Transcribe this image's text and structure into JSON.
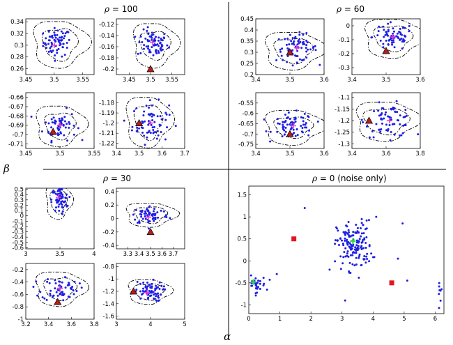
{
  "figure": {
    "x_label": "α",
    "y_label": "β"
  },
  "quadrants": [
    {
      "rho_symbol": "ρ",
      "title": "= 100"
    },
    {
      "rho_symbol": "ρ",
      "title": "= 60"
    },
    {
      "rho_symbol": "ρ",
      "title": "= 30"
    },
    {
      "rho_symbol": "ρ",
      "title": "= 0 (noise only)"
    }
  ],
  "colors": {
    "points": "#1f1fe6",
    "estimate": "#e23cd6",
    "truth_marker": "#b41e1e",
    "noise_square": "#e0191f",
    "noise_center": "#2ee03a"
  },
  "chart_data": [
    {
      "type": "scatter",
      "panel": "rho100-a",
      "xlim": [
        3.45,
        3.57
      ],
      "ylim": [
        0.25,
        0.345
      ],
      "xticks": [
        3.45,
        3.5,
        3.55
      ],
      "yticks": [
        0.26,
        0.28,
        0.3,
        0.32,
        0.34
      ],
      "cloud": {
        "center": [
          3.505,
          0.305
        ],
        "spread": [
          0.012,
          0.012
        ],
        "n": 70
      },
      "estimate": [
        3.5,
        0.3
      ],
      "truth": null,
      "contours": [
        {
          "center": [
            3.51,
            0.303
          ],
          "radius": [
            0.03,
            0.027
          ]
        },
        {
          "center": [
            3.51,
            0.303
          ],
          "radius": [
            0.048,
            0.04
          ]
        }
      ]
    },
    {
      "type": "scatter",
      "panel": "rho100-b",
      "xlim": [
        3.42,
        3.58
      ],
      "ylim": [
        -0.21,
        -0.11
      ],
      "xticks": [
        3.45,
        3.5,
        3.55
      ],
      "yticks": [
        -0.12,
        -0.14,
        -0.16,
        -0.18,
        -0.2
      ],
      "cloud": {
        "center": [
          3.505,
          -0.155
        ],
        "spread": [
          0.018,
          0.012
        ],
        "n": 70
      },
      "estimate": [
        3.505,
        -0.152
      ],
      "truth": [
        3.5,
        -0.2
      ],
      "contours": [
        {
          "center": [
            3.51,
            -0.156
          ],
          "radius": [
            0.035,
            0.025
          ]
        },
        {
          "center": [
            3.51,
            -0.156
          ],
          "radius": [
            0.052,
            0.04
          ]
        }
      ]
    },
    {
      "type": "scatter",
      "panel": "rho100-c",
      "xlim": [
        3.45,
        3.55
      ],
      "ylim": [
        -0.715,
        -0.655
      ],
      "xticks": [
        3.45,
        3.5,
        3.55
      ],
      "yticks": [
        -0.66,
        -0.67,
        -0.68,
        -0.69,
        -0.7,
        -0.71
      ],
      "cloud": {
        "center": [
          3.5,
          -0.69
        ],
        "spread": [
          0.012,
          0.008
        ],
        "n": 60
      },
      "estimate": [
        3.5,
        -0.69
      ],
      "truth": [
        3.49,
        -0.697
      ],
      "contours": [
        {
          "center": [
            3.5,
            -0.69
          ],
          "radius": [
            0.022,
            0.014
          ]
        },
        {
          "center": [
            3.5,
            -0.69
          ],
          "radius": [
            0.036,
            0.022
          ]
        }
      ]
    },
    {
      "type": "scatter",
      "panel": "rho100-d",
      "xlim": [
        3.4,
        3.7
      ],
      "ylim": [
        -1.225,
        -1.17
      ],
      "xticks": [
        3.4,
        3.5,
        3.6,
        3.7
      ],
      "yticks": [
        -1.18,
        -1.19,
        -1.2,
        -1.21,
        -1.22
      ],
      "cloud": {
        "center": [
          3.55,
          -1.2
        ],
        "spread": [
          0.04,
          0.01
        ],
        "n": 70
      },
      "estimate": [
        3.55,
        -1.2
      ],
      "truth": [
        3.5,
        -1.2
      ],
      "contours": [
        {
          "center": [
            3.54,
            -1.198
          ],
          "radius": [
            0.06,
            0.017
          ]
        },
        {
          "center": [
            3.54,
            -1.198
          ],
          "radius": [
            0.1,
            0.025
          ]
        }
      ]
    },
    {
      "type": "scatter",
      "panel": "rho60-a",
      "xlim": [
        3.4,
        3.6
      ],
      "ylim": [
        0.2,
        0.45
      ],
      "xticks": [
        3.4,
        3.5,
        3.6
      ],
      "yticks": [
        0.2,
        0.25,
        0.3,
        0.35,
        0.4,
        0.45
      ],
      "cloud": {
        "center": [
          3.52,
          0.32
        ],
        "spread": [
          0.03,
          0.03
        ],
        "n": 70
      },
      "estimate": [
        3.52,
        0.32
      ],
      "truth": [
        3.5,
        0.3
      ],
      "contours": [
        {
          "center": [
            3.51,
            0.31
          ],
          "radius": [
            0.055,
            0.055
          ]
        },
        {
          "center": [
            3.51,
            0.31
          ],
          "radius": [
            0.085,
            0.085
          ]
        }
      ]
    },
    {
      "type": "scatter",
      "panel": "rho60-b",
      "xlim": [
        3.4,
        3.6
      ],
      "ylim": [
        -0.35,
        0.05
      ],
      "xticks": [
        3.4,
        3.5,
        3.6
      ],
      "yticks": [
        0,
        -0.1,
        -0.2,
        -0.3
      ],
      "cloud": {
        "center": [
          3.52,
          -0.08
        ],
        "spread": [
          0.03,
          0.05
        ],
        "n": 70
      },
      "estimate": [
        3.52,
        -0.08
      ],
      "truth": [
        3.5,
        -0.18
      ],
      "contours": [
        {
          "center": [
            3.52,
            -0.085
          ],
          "radius": [
            0.055,
            0.09
          ]
        },
        {
          "center": [
            3.52,
            -0.085
          ],
          "radius": [
            0.085,
            0.14
          ]
        }
      ]
    },
    {
      "type": "scatter",
      "panel": "rho60-c",
      "xlim": [
        3.4,
        3.6
      ],
      "ylim": [
        -0.77,
        -0.5
      ],
      "xticks": [
        3.4,
        3.5,
        3.6
      ],
      "yticks": [
        -0.55,
        -0.6,
        -0.65,
        -0.7,
        -0.75
      ],
      "cloud": {
        "center": [
          3.51,
          -0.66
        ],
        "spread": [
          0.03,
          0.03
        ],
        "n": 70
      },
      "estimate": [
        3.51,
        -0.66
      ],
      "truth": [
        3.5,
        -0.7
      ],
      "contours": [
        {
          "center": [
            3.51,
            -0.665
          ],
          "radius": [
            0.055,
            0.05
          ]
        },
        {
          "center": [
            3.51,
            -0.665
          ],
          "radius": [
            0.085,
            0.085
          ]
        }
      ]
    },
    {
      "type": "scatter",
      "panel": "rho60-d",
      "xlim": [
        3.4,
        3.8
      ],
      "ylim": [
        -1.32,
        -1.08
      ],
      "xticks": [
        3.4,
        3.6,
        3.8
      ],
      "yticks": [
        -1.1,
        -1.15,
        -1.2,
        -1.25,
        -1.3
      ],
      "cloud": {
        "center": [
          3.62,
          -1.2
        ],
        "spread": [
          0.07,
          0.035
        ],
        "n": 70
      },
      "estimate": [
        3.62,
        -1.2
      ],
      "truth": [
        3.5,
        -1.2
      ],
      "contours": [
        {
          "center": [
            3.6,
            -1.2
          ],
          "radius": [
            0.13,
            0.055
          ]
        },
        {
          "center": [
            3.6,
            -1.2
          ],
          "radius": [
            0.18,
            0.085
          ]
        }
      ]
    },
    {
      "type": "scatter",
      "panel": "rho30-a",
      "xlim": [
        3,
        4
      ],
      "ylim": [
        -0.62,
        0.52
      ],
      "xticks": [
        3,
        3.5,
        4
      ],
      "yticks": [
        0.5,
        0.4,
        0.3,
        0.2,
        0.1,
        0,
        -0.1,
        -0.2,
        -0.3,
        -0.4,
        -0.5,
        -0.6
      ],
      "cloud": {
        "center": [
          3.5,
          0.3
        ],
        "spread": [
          0.06,
          0.12
        ],
        "n": 60
      },
      "estimate": [
        3.48,
        0.35
      ],
      "truth": null,
      "contours": [
        {
          "center": [
            3.48,
            0.28
          ],
          "radius": [
            0.12,
            0.22
          ]
        },
        {
          "center": [
            3.48,
            0.28
          ],
          "radius": [
            0.19,
            0.33
          ]
        }
      ]
    },
    {
      "type": "scatter",
      "panel": "rho30-b",
      "xlim": [
        3.2,
        3.8
      ],
      "ylim": [
        -0.45,
        0.45
      ],
      "xticks": [
        3.3,
        3.4,
        3.5,
        3.6,
        3.7
      ],
      "yticks": [
        0.4,
        0.2,
        0,
        -0.2,
        -0.4
      ],
      "cloud": {
        "center": [
          3.5,
          0.05
        ],
        "spread": [
          0.08,
          0.07
        ],
        "n": 70
      },
      "estimate": [
        3.48,
        0.02
      ],
      "truth": [
        3.5,
        -0.2
      ],
      "contours": [
        {
          "center": [
            3.5,
            0.06
          ],
          "radius": [
            0.14,
            0.12
          ]
        },
        {
          "center": [
            3.5,
            0.06
          ],
          "radius": [
            0.22,
            0.18
          ]
        }
      ]
    },
    {
      "type": "scatter",
      "panel": "rho30-c",
      "xlim": [
        3.2,
        3.8
      ],
      "ylim": [
        -1.0,
        -0.1
      ],
      "xticks": [
        3.2,
        3.4,
        3.6,
        3.8
      ],
      "yticks": [
        -0.2,
        -0.4,
        -0.6,
        -0.8,
        -1
      ],
      "cloud": {
        "center": [
          3.5,
          -0.5
        ],
        "spread": [
          0.08,
          0.1
        ],
        "n": 60
      },
      "estimate": [
        3.5,
        -0.5
      ],
      "truth": [
        3.48,
        -0.72
      ],
      "contours": [
        {
          "center": [
            3.5,
            -0.5
          ],
          "radius": [
            0.14,
            0.18
          ]
        },
        {
          "center": [
            3.5,
            -0.5
          ],
          "radius": [
            0.22,
            0.28
          ]
        }
      ]
    },
    {
      "type": "scatter",
      "panel": "rho30-d",
      "xlim": [
        3,
        5
      ],
      "ylim": [
        -1.65,
        -0.75
      ],
      "xticks": [
        3,
        4,
        5
      ],
      "yticks": [
        -0.8,
        -1,
        -1.2,
        -1.4,
        -1.6
      ],
      "cloud": {
        "center": [
          3.95,
          -1.2
        ],
        "spread": [
          0.2,
          0.08
        ],
        "n": 70
      },
      "estimate": [
        3.9,
        -1.22
      ],
      "truth": [
        3.5,
        -1.2
      ],
      "contours": [
        {
          "center": [
            3.95,
            -1.2
          ],
          "radius": [
            0.42,
            0.13
          ]
        },
        {
          "center": [
            3.95,
            -1.2
          ],
          "radius": [
            0.62,
            0.2
          ]
        }
      ]
    },
    {
      "type": "scatter",
      "panel": "rho0",
      "xlim": [
        0,
        6.28
      ],
      "ylim": [
        -1.2,
        1.7
      ],
      "xticks": [
        0,
        1,
        2,
        3,
        4,
        5,
        6
      ],
      "yticks": [
        1.5,
        1,
        0.5,
        0,
        -0.5,
        -1
      ],
      "clusters": [
        {
          "center": [
            3.4,
            0.35
          ],
          "spread": [
            0.28,
            0.28
          ],
          "n": 150
        },
        {
          "center": [
            0.2,
            -0.55
          ],
          "spread": [
            0.18,
            0.1
          ],
          "n": 35
        },
        {
          "center": [
            6.15,
            -0.6
          ],
          "spread": [
            0.06,
            0.15
          ],
          "n": 8
        }
      ],
      "extra_points": [
        [
          1.8,
          1.2
        ],
        [
          4.8,
          0.05
        ],
        [
          2.6,
          -0.2
        ],
        [
          0.9,
          -0.3
        ],
        [
          4.95,
          0.85
        ],
        [
          5.1,
          -0.45
        ],
        [
          3.1,
          -0.9
        ],
        [
          4.1,
          1.0
        ]
      ],
      "centers": [
        [
          3.35,
          0.45
        ],
        [
          0.15,
          -0.48
        ]
      ],
      "squares": [
        [
          1.45,
          0.5
        ],
        [
          4.6,
          -0.5
        ]
      ]
    }
  ]
}
